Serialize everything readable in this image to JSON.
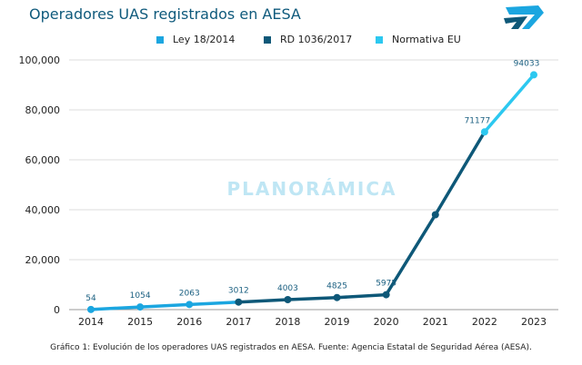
{
  "chart_data": {
    "type": "line",
    "title": "Operadores UAS registrados en AESA",
    "x": [
      2014,
      2015,
      2016,
      2017,
      2018,
      2019,
      2020,
      2021,
      2022,
      2023
    ],
    "values": [
      54,
      1054,
      2063,
      3012,
      4003,
      4825,
      5975,
      38000,
      71177,
      94033
    ],
    "data_labels": [
      "54",
      "1054",
      "2063",
      "3012",
      "4003",
      "4825",
      "5975",
      "",
      "71177",
      "94033"
    ],
    "series": [
      {
        "name": "Ley 18/2014",
        "color": "#1ba6e0",
        "x_range": [
          2014,
          2017
        ]
      },
      {
        "name": "RD 1036/2017",
        "color": "#0e5878",
        "x_range": [
          2017,
          2022
        ]
      },
      {
        "name": "Normativa EU",
        "color": "#2cc8f0",
        "x_range": [
          2022,
          2023
        ]
      }
    ],
    "ylim": [
      0,
      100000
    ],
    "yticks": [
      "0",
      "20,000",
      "40,000",
      "60,000",
      "80,000",
      "100,000"
    ],
    "ytick_values": [
      0,
      20000,
      40000,
      60000,
      80000,
      100000
    ],
    "grid": true,
    "legend_position": "top"
  },
  "watermark": "PLANORÁMICA",
  "caption": "Gráfico 1: Evolución de los operadores UAS registrados en AESA. Fuente: Agencia Estatal de Seguridad Aérea (AESA).",
  "title_color": "#0f5a7c"
}
